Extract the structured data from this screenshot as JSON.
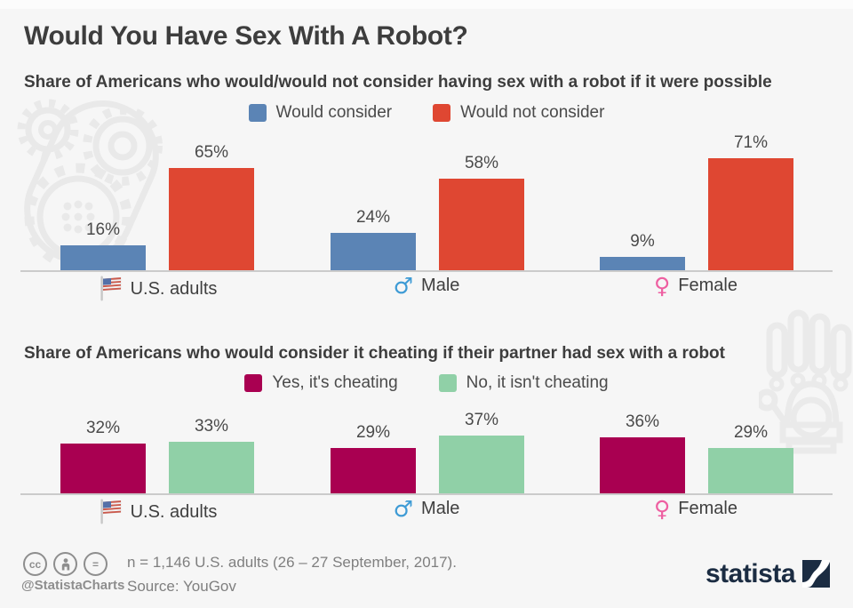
{
  "page": {
    "title": "Would You Have Sex With A Robot?"
  },
  "chart_data": [
    {
      "type": "bar",
      "title": "Share of Americans who would/would not consider having sex with a robot if it were possible",
      "categories": [
        "U.S. adults",
        "Male",
        "Female"
      ],
      "category_icons": [
        "us-flag-icon",
        "male-icon",
        "female-icon"
      ],
      "series": [
        {
          "name": "Would consider",
          "color": "#5b84b5",
          "values": [
            16,
            24,
            9
          ]
        },
        {
          "name": "Would not consider",
          "color": "#df4732",
          "values": [
            65,
            58,
            71
          ]
        }
      ],
      "value_suffix": "%",
      "ylim": [
        0,
        80
      ],
      "grid": false,
      "legend_position": "top"
    },
    {
      "type": "bar",
      "title": "Share of Americans who would consider it cheating if their partner had sex with a robot",
      "categories": [
        "U.S. adults",
        "Male",
        "Female"
      ],
      "category_icons": [
        "us-flag-icon",
        "male-icon",
        "female-icon"
      ],
      "series": [
        {
          "name": "Yes, it's cheating",
          "color": "#a90051",
          "values": [
            32,
            29,
            36
          ]
        },
        {
          "name": "No, it isn't cheating",
          "color": "#90d0a7",
          "values": [
            33,
            37,
            29
          ]
        }
      ],
      "value_suffix": "%",
      "ylim": [
        0,
        80
      ],
      "grid": false,
      "legend_position": "top"
    }
  ],
  "footer": {
    "handle": "@StatistaCharts",
    "sample_note": "n = 1,146 U.S. adults (26 – 27 September, 2017).",
    "source": "Source: YouGov",
    "brand": "statista",
    "license_icons": [
      "cc-icon",
      "attribution-icon",
      "no-derivatives-icon"
    ]
  },
  "colors": {
    "male_symbol": "#3e9bd5",
    "female_symbol": "#ee5fa1",
    "brand_navy": "#1b2c42",
    "axis_line": "#cbcbcb",
    "watermark": "#e9e9e9"
  }
}
